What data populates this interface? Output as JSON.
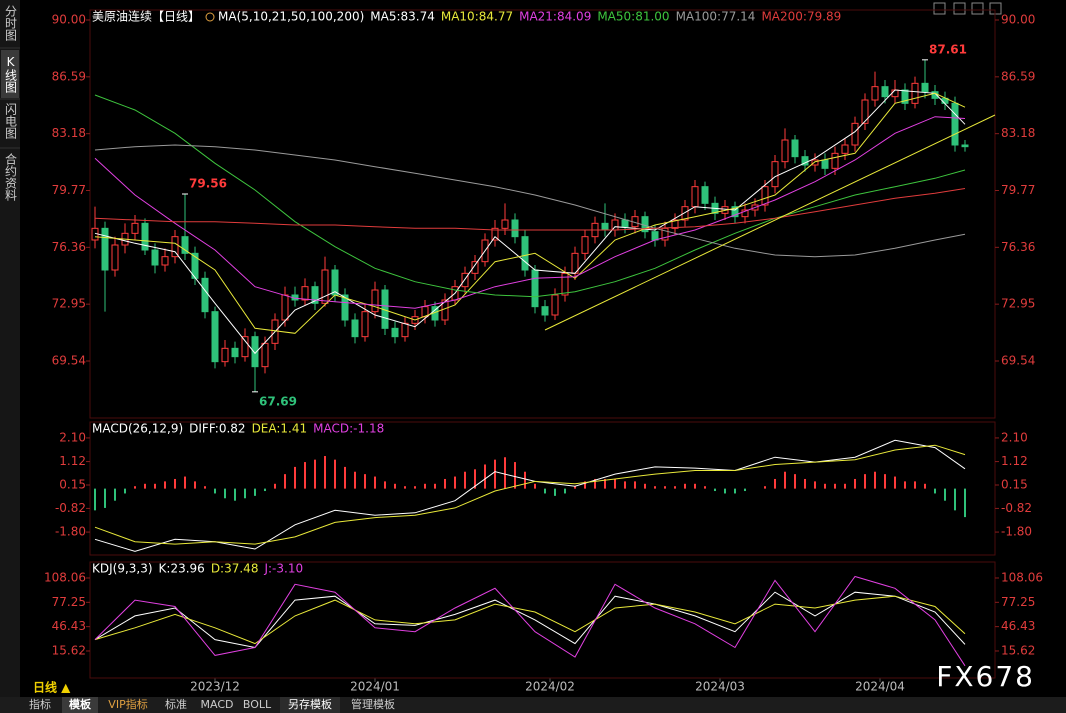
{
  "chart_data": [
    {
      "type": "candlestick",
      "title": "美原油连续【日线】",
      "indicator": "MA(5,10,21,50,100,200)",
      "up_color": "#ff3b3b",
      "down_color": "#2fc27a",
      "ohlc": [
        [
          76.8,
          78.8,
          76.3,
          77.5
        ],
        [
          77.5,
          77.9,
          72.5,
          75.0
        ],
        [
          75.0,
          77.0,
          74.6,
          76.5
        ],
        [
          76.5,
          77.8,
          76.0,
          77.2
        ],
        [
          77.2,
          78.3,
          76.8,
          77.8
        ],
        [
          77.8,
          78.1,
          75.9,
          76.2
        ],
        [
          76.2,
          76.6,
          74.8,
          75.3
        ],
        [
          75.3,
          76.3,
          74.9,
          75.8
        ],
        [
          75.8,
          77.4,
          75.4,
          77.0
        ],
        [
          77.0,
          79.56,
          75.6,
          76.0
        ],
        [
          76.0,
          76.4,
          74.1,
          74.5
        ],
        [
          74.5,
          74.9,
          72.1,
          72.5
        ],
        [
          72.5,
          72.8,
          69.1,
          69.5
        ],
        [
          69.5,
          70.8,
          69.2,
          70.3
        ],
        [
          70.3,
          70.7,
          69.4,
          69.8
        ],
        [
          69.8,
          71.5,
          69.5,
          71.0
        ],
        [
          71.0,
          71.3,
          67.69,
          69.2
        ],
        [
          69.2,
          71.0,
          68.8,
          70.6
        ],
        [
          70.6,
          72.4,
          70.2,
          72.0
        ],
        [
          72.0,
          74.0,
          71.6,
          73.5
        ],
        [
          73.5,
          74.0,
          72.8,
          73.2
        ],
        [
          73.2,
          74.5,
          72.9,
          74.0
        ],
        [
          74.0,
          74.3,
          72.6,
          73.0
        ],
        [
          73.0,
          75.8,
          72.8,
          75.0
        ],
        [
          75.0,
          75.3,
          73.1,
          73.5
        ],
        [
          73.5,
          73.9,
          71.6,
          72.0
        ],
        [
          72.0,
          72.4,
          70.6,
          71.0
        ],
        [
          71.0,
          73.0,
          70.7,
          72.5
        ],
        [
          72.5,
          74.3,
          72.1,
          73.8
        ],
        [
          73.8,
          74.1,
          71.1,
          71.5
        ],
        [
          71.5,
          71.9,
          70.6,
          71.0
        ],
        [
          71.0,
          72.2,
          70.7,
          71.8
        ],
        [
          71.8,
          72.6,
          71.4,
          72.2
        ],
        [
          72.2,
          73.2,
          71.8,
          72.8
        ],
        [
          72.8,
          73.1,
          71.6,
          72.0
        ],
        [
          72.0,
          73.6,
          71.7,
          73.2
        ],
        [
          73.2,
          74.4,
          72.9,
          74.0
        ],
        [
          74.0,
          75.2,
          73.6,
          74.8
        ],
        [
          74.8,
          75.9,
          74.4,
          75.5
        ],
        [
          75.5,
          77.2,
          75.2,
          76.8
        ],
        [
          76.8,
          78.0,
          76.4,
          77.5
        ],
        [
          77.5,
          79.0,
          77.1,
          78.0
        ],
        [
          78.0,
          78.4,
          76.6,
          77.0
        ],
        [
          77.0,
          77.4,
          74.6,
          75.0
        ],
        [
          75.0,
          75.3,
          72.4,
          72.8
        ],
        [
          72.8,
          73.2,
          71.9,
          72.3
        ],
        [
          72.3,
          73.9,
          72.0,
          73.5
        ],
        [
          73.5,
          75.2,
          73.1,
          74.8
        ],
        [
          74.8,
          76.4,
          74.4,
          76.0
        ],
        [
          76.0,
          77.4,
          75.6,
          77.0
        ],
        [
          77.0,
          78.2,
          76.6,
          77.8
        ],
        [
          77.8,
          79.0,
          77.0,
          77.4
        ],
        [
          77.4,
          78.4,
          77.0,
          78.0
        ],
        [
          78.0,
          78.4,
          77.2,
          77.6
        ],
        [
          77.6,
          78.6,
          77.2,
          78.2
        ],
        [
          78.2,
          78.5,
          76.9,
          77.3
        ],
        [
          77.3,
          77.7,
          76.4,
          76.8
        ],
        [
          76.8,
          77.9,
          76.4,
          77.5
        ],
        [
          77.5,
          78.4,
          77.1,
          78.0
        ],
        [
          78.0,
          79.2,
          77.6,
          78.8
        ],
        [
          78.8,
          80.4,
          78.4,
          80.0
        ],
        [
          80.0,
          80.3,
          78.6,
          79.0
        ],
        [
          79.0,
          79.4,
          78.0,
          78.4
        ],
        [
          78.4,
          79.2,
          78.0,
          78.8
        ],
        [
          78.8,
          79.1,
          77.8,
          78.2
        ],
        [
          78.2,
          79.0,
          77.8,
          78.6
        ],
        [
          78.6,
          79.3,
          78.2,
          78.9
        ],
        [
          78.9,
          80.4,
          78.5,
          80.0
        ],
        [
          80.0,
          81.9,
          79.6,
          81.5
        ],
        [
          81.5,
          83.5,
          81.1,
          82.8
        ],
        [
          82.8,
          83.1,
          81.4,
          81.8
        ],
        [
          81.8,
          82.2,
          80.9,
          81.3
        ],
        [
          81.3,
          82.0,
          80.9,
          81.6
        ],
        [
          81.6,
          82.0,
          80.7,
          81.1
        ],
        [
          81.1,
          82.4,
          80.7,
          82.0
        ],
        [
          82.0,
          82.9,
          81.6,
          82.5
        ],
        [
          82.5,
          84.2,
          82.1,
          83.8
        ],
        [
          83.8,
          85.6,
          83.4,
          85.2
        ],
        [
          85.2,
          86.9,
          84.8,
          86.0
        ],
        [
          86.0,
          86.4,
          85.0,
          85.4
        ],
        [
          85.4,
          86.4,
          85.0,
          85.8
        ],
        [
          85.8,
          86.2,
          84.6,
          85.0
        ],
        [
          85.0,
          86.6,
          84.7,
          86.2
        ],
        [
          86.2,
          87.61,
          85.3,
          85.7
        ],
        [
          85.7,
          86.1,
          84.9,
          85.3
        ],
        [
          85.3,
          85.7,
          84.6,
          85.0
        ],
        [
          85.0,
          85.4,
          82.1,
          82.5
        ],
        [
          82.5,
          82.8,
          82.1,
          82.4
        ]
      ],
      "marked_prices": [
        79.56,
        67.69,
        87.61
      ],
      "x": [
        0,
        4,
        8,
        12,
        16,
        20,
        24,
        28,
        32,
        36,
        40,
        44,
        48,
        52,
        56,
        60,
        64,
        68,
        72,
        76,
        80,
        84,
        87
      ],
      "series": [
        {
          "name": "MA5:83.74",
          "color": "#ffffff",
          "values": [
            77.2,
            76.6,
            76.1,
            73.0,
            70.0,
            72.6,
            73.7,
            72.3,
            71.6,
            73.6,
            77.0,
            75.0,
            74.8,
            77.6,
            77.4,
            78.8,
            78.6,
            80.6,
            81.7,
            83.3,
            85.8,
            85.6,
            83.74
          ]
        },
        {
          "name": "MA10:84.77",
          "color": "#e8e83a",
          "values": [
            77.0,
            76.8,
            76.6,
            75.0,
            71.5,
            71.2,
            73.5,
            72.8,
            72.0,
            72.9,
            75.5,
            76.0,
            74.5,
            76.8,
            77.7,
            78.2,
            78.7,
            79.5,
            81.5,
            82.0,
            85.0,
            85.6,
            84.77
          ]
        },
        {
          "name": "MA21:84.09",
          "color": "#e040e0",
          "values": [
            81.7,
            79.5,
            77.8,
            76.2,
            74.0,
            73.3,
            73.1,
            72.9,
            72.7,
            73.2,
            74.0,
            74.5,
            74.6,
            75.8,
            76.8,
            77.4,
            78.3,
            79.2,
            80.3,
            81.6,
            83.2,
            84.2,
            84.09
          ]
        },
        {
          "name": "MA50:81.00",
          "color": "#3ec43e",
          "values": [
            85.5,
            84.6,
            83.2,
            81.4,
            79.8,
            77.9,
            76.4,
            75.1,
            74.3,
            73.8,
            73.5,
            73.4,
            73.7,
            74.3,
            75.1,
            76.2,
            77.2,
            78.1,
            78.8,
            79.5,
            80.0,
            80.5,
            81.0
          ]
        },
        {
          "name": "MA100:77.14",
          "color": "#9a9a9a",
          "values": [
            82.2,
            82.4,
            82.5,
            82.4,
            82.2,
            81.9,
            81.6,
            81.2,
            80.8,
            80.4,
            80.0,
            79.5,
            78.9,
            78.2,
            77.5,
            76.9,
            76.3,
            75.9,
            75.8,
            75.9,
            76.3,
            76.8,
            77.14
          ]
        },
        {
          "name": "MA200:79.89",
          "color": "#e03c3c",
          "values": [
            78.1,
            78.0,
            77.9,
            77.9,
            77.8,
            77.7,
            77.7,
            77.6,
            77.5,
            77.5,
            77.4,
            77.4,
            77.4,
            77.4,
            77.5,
            77.6,
            77.8,
            78.1,
            78.5,
            78.9,
            79.3,
            79.6,
            79.89
          ]
        }
      ],
      "trendline": {
        "color": "#e8e83a",
        "x": [
          45,
          90
        ],
        "values": [
          71.4,
          84.3
        ]
      },
      "xlim": [
        -0.5,
        90
      ],
      "ylim": [
        66.12,
        90.6
      ],
      "xticks": [
        {
          "value": 12,
          "label": "2023/12"
        },
        {
          "value": 28,
          "label": "2024/01"
        },
        {
          "value": 45.5,
          "label": "2024/02"
        },
        {
          "value": 62.5,
          "label": "2024/03"
        },
        {
          "value": 78.5,
          "label": "2024/04"
        }
      ],
      "yticks": [
        {
          "value": 90,
          "label": "90.00"
        },
        86.59,
        83.18,
        79.77,
        76.36,
        72.95,
        69.54
      ]
    },
    {
      "type": "macd",
      "title": "MACD(26,12,9)",
      "x": [
        0,
        4,
        8,
        12,
        16,
        20,
        24,
        28,
        32,
        36,
        40,
        44,
        48,
        52,
        56,
        60,
        64,
        68,
        72,
        76,
        80,
        84,
        87
      ],
      "series": [
        {
          "name": "DIFF:0.82",
          "color": "#ffffff",
          "values": [
            -2.1,
            -2.6,
            -2.1,
            -2.2,
            -2.5,
            -1.5,
            -0.9,
            -1.1,
            -1.0,
            -0.5,
            0.7,
            0.3,
            0.1,
            0.6,
            0.9,
            0.85,
            0.75,
            1.3,
            1.1,
            1.3,
            2.0,
            1.7,
            0.82
          ]
        },
        {
          "name": "DEA:1.41",
          "color": "#e8e83a",
          "values": [
            -1.6,
            -2.2,
            -2.3,
            -2.2,
            -2.3,
            -2.0,
            -1.4,
            -1.2,
            -1.1,
            -0.8,
            -0.1,
            0.3,
            0.2,
            0.4,
            0.6,
            0.75,
            0.75,
            1.0,
            1.1,
            1.2,
            1.6,
            1.8,
            1.41
          ]
        }
      ],
      "histogram": {
        "name": "MACD:-1.18",
        "color": "#e040e0",
        "up_color": "#ff3b3b",
        "down_color": "#2fc27a",
        "values": [
          -0.9,
          -0.8,
          -0.5,
          -0.2,
          0.1,
          0.2,
          0.2,
          0.3,
          0.4,
          0.5,
          0.3,
          0.1,
          -0.2,
          -0.4,
          -0.5,
          -0.4,
          -0.3,
          -0.1,
          0.2,
          0.6,
          0.9,
          1.1,
          1.2,
          1.35,
          1.2,
          0.9,
          0.7,
          0.6,
          0.5,
          0.3,
          0.2,
          0.1,
          0.1,
          0.2,
          0.2,
          0.4,
          0.5,
          0.7,
          0.8,
          1.0,
          1.2,
          1.3,
          1.1,
          0.7,
          0.2,
          -0.2,
          -0.3,
          -0.2,
          0.1,
          0.3,
          0.4,
          0.4,
          0.4,
          0.3,
          0.3,
          0.2,
          0.1,
          0.1,
          0.1,
          0.2,
          0.2,
          0.1,
          -0.1,
          -0.2,
          -0.2,
          -0.1,
          0.0,
          0.1,
          0.4,
          0.7,
          0.6,
          0.4,
          0.3,
          0.2,
          0.2,
          0.2,
          0.4,
          0.6,
          0.7,
          0.6,
          0.5,
          0.3,
          0.3,
          0.2,
          -0.2,
          -0.5,
          -0.9,
          -1.18
        ]
      },
      "xlim": [
        -0.5,
        90
      ],
      "ylim": [
        -2.75,
        2.76
      ],
      "yticks": [
        {
          "value": 2.1,
          "label": "2.10"
        },
        1.12,
        0.15,
        -0.82,
        {
          "value": -1.8,
          "label": "-1.80"
        }
      ]
    },
    {
      "type": "line",
      "title": "KDJ(9,3,3)",
      "x": [
        0,
        4,
        8,
        12,
        16,
        20,
        24,
        28,
        32,
        36,
        40,
        44,
        48,
        52,
        56,
        60,
        64,
        68,
        72,
        76,
        80,
        84,
        87
      ],
      "series": [
        {
          "name": "K:23.96",
          "color": "#ffffff",
          "values": [
            30,
            60,
            70,
            30,
            20,
            80,
            85,
            50,
            48,
            62,
            80,
            55,
            25,
            85,
            75,
            60,
            40,
            90,
            60,
            90,
            85,
            65,
            23.96
          ]
        },
        {
          "name": "D:37.48",
          "color": "#e8e83a",
          "values": [
            30,
            45,
            62,
            45,
            25,
            60,
            80,
            55,
            50,
            55,
            75,
            65,
            40,
            70,
            75,
            65,
            50,
            75,
            70,
            80,
            85,
            72,
            37.48
          ]
        },
        {
          "name": "J:-3.10",
          "color": "#e040e0",
          "values": [
            30,
            80,
            72,
            10,
            20,
            100,
            90,
            45,
            40,
            70,
            95,
            40,
            8,
            100,
            70,
            50,
            20,
            105,
            40,
            110,
            95,
            55,
            -3.1
          ]
        }
      ],
      "xlim": [
        -0.5,
        90
      ],
      "ylim": [
        -18.6,
        128.3
      ],
      "yticks": [
        108.06,
        77.25,
        46.43,
        15.62
      ]
    }
  ],
  "ui": {
    "sidebar": [
      "分时图",
      "K线图",
      "闪电图",
      "合约资料"
    ],
    "period": "日线 ▲",
    "toolbar": [
      "指标",
      "模板",
      "VIP指标",
      "标准",
      "MACD",
      "BOLL",
      "另存模板",
      "管理模板"
    ],
    "watermark": "FX678"
  }
}
